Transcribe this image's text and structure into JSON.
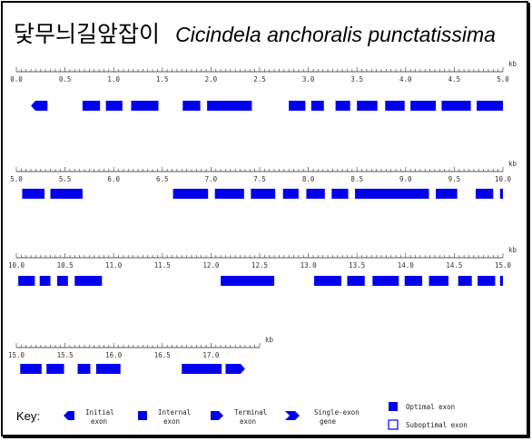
{
  "title": {
    "korean": "닻무늬길앞잡이",
    "scientific": "Cicindela anchoralis punctatissima"
  },
  "axis_unit": "kb",
  "rows": [
    {
      "start": 0,
      "end": 5.0,
      "ticks": [
        "0.0",
        "0.5",
        "1.0",
        "1.5",
        "2.0",
        "2.5",
        "3.0",
        "3.5",
        "4.0",
        "4.5",
        "5.0"
      ],
      "exons": [
        {
          "start": 0.15,
          "end": 0.32,
          "type": "initial"
        },
        {
          "start": 0.68,
          "end": 0.86,
          "type": "internal"
        },
        {
          "start": 0.92,
          "end": 1.09,
          "type": "internal"
        },
        {
          "start": 1.18,
          "end": 1.46,
          "type": "internal"
        },
        {
          "start": 1.71,
          "end": 1.89,
          "type": "internal"
        },
        {
          "start": 1.96,
          "end": 2.42,
          "type": "internal"
        },
        {
          "start": 2.8,
          "end": 2.97,
          "type": "internal"
        },
        {
          "start": 3.03,
          "end": 3.16,
          "type": "internal"
        },
        {
          "start": 3.28,
          "end": 3.43,
          "type": "internal"
        },
        {
          "start": 3.5,
          "end": 3.71,
          "type": "internal"
        },
        {
          "start": 3.79,
          "end": 3.99,
          "type": "internal"
        },
        {
          "start": 4.05,
          "end": 4.31,
          "type": "internal"
        },
        {
          "start": 4.37,
          "end": 4.67,
          "type": "internal"
        },
        {
          "start": 4.73,
          "end": 5.0,
          "type": "internal"
        }
      ]
    },
    {
      "start": 5.0,
      "end": 10.0,
      "ticks": [
        "5.0",
        "5.5",
        "6.0",
        "6.5",
        "7.0",
        "7.5",
        "8.0",
        "8.5",
        "9.0",
        "9.5",
        "10.0"
      ],
      "exons": [
        {
          "start": 5.06,
          "end": 5.29,
          "type": "internal"
        },
        {
          "start": 5.35,
          "end": 5.68,
          "type": "internal"
        },
        {
          "start": 6.61,
          "end": 6.97,
          "type": "internal"
        },
        {
          "start": 7.04,
          "end": 7.34,
          "type": "internal"
        },
        {
          "start": 7.41,
          "end": 7.66,
          "type": "internal"
        },
        {
          "start": 7.74,
          "end": 7.9,
          "type": "internal"
        },
        {
          "start": 7.98,
          "end": 8.17,
          "type": "internal"
        },
        {
          "start": 8.24,
          "end": 8.41,
          "type": "internal"
        },
        {
          "start": 8.48,
          "end": 9.24,
          "type": "internal"
        },
        {
          "start": 9.31,
          "end": 9.53,
          "type": "internal"
        },
        {
          "start": 9.72,
          "end": 9.9,
          "type": "internal"
        },
        {
          "start": 9.97,
          "end": 10.0,
          "type": "internal"
        }
      ]
    },
    {
      "start": 10.0,
      "end": 15.0,
      "ticks": [
        "10.0",
        "10.5",
        "11.0",
        "11.5",
        "12.0",
        "12.5",
        "13.0",
        "13.5",
        "14.0",
        "14.5",
        "15.0"
      ],
      "exons": [
        {
          "start": 10.02,
          "end": 10.19,
          "type": "internal"
        },
        {
          "start": 10.24,
          "end": 10.35,
          "type": "internal"
        },
        {
          "start": 10.42,
          "end": 10.53,
          "type": "internal"
        },
        {
          "start": 10.6,
          "end": 10.88,
          "type": "internal"
        },
        {
          "start": 12.1,
          "end": 12.65,
          "type": "internal"
        },
        {
          "start": 13.06,
          "end": 13.34,
          "type": "internal"
        },
        {
          "start": 13.4,
          "end": 13.58,
          "type": "internal"
        },
        {
          "start": 13.66,
          "end": 13.93,
          "type": "internal"
        },
        {
          "start": 13.99,
          "end": 14.17,
          "type": "internal"
        },
        {
          "start": 14.24,
          "end": 14.44,
          "type": "internal"
        },
        {
          "start": 14.54,
          "end": 14.68,
          "type": "internal"
        },
        {
          "start": 14.74,
          "end": 14.92,
          "type": "internal"
        },
        {
          "start": 14.97,
          "end": 15.0,
          "type": "internal"
        }
      ]
    },
    {
      "start": 15.0,
      "end": 17.5,
      "ticks": [
        "15.0",
        "15.5",
        "16.0",
        "16.5",
        "17.0"
      ],
      "exons": [
        {
          "start": 15.04,
          "end": 15.26,
          "type": "internal"
        },
        {
          "start": 15.31,
          "end": 15.49,
          "type": "internal"
        },
        {
          "start": 15.63,
          "end": 15.76,
          "type": "internal"
        },
        {
          "start": 15.82,
          "end": 16.07,
          "type": "internal"
        },
        {
          "start": 16.7,
          "end": 17.11,
          "type": "internal"
        },
        {
          "start": 17.15,
          "end": 17.35,
          "type": "terminal"
        }
      ]
    }
  ],
  "key": {
    "label": "Key:",
    "items": [
      {
        "line1": "Initial",
        "line2": "exon",
        "shape": "initial"
      },
      {
        "line1": "Internal",
        "line2": "exon",
        "shape": "internal"
      },
      {
        "line1": "Terminal",
        "line2": "exon",
        "shape": "terminal"
      },
      {
        "line1": "Single-exon",
        "line2": "gene",
        "shape": "single"
      }
    ],
    "optimal": "Optimal exon",
    "suboptimal": "Suboptimal exon"
  },
  "colors": {
    "exon": "#0000ee",
    "axis": "#555555",
    "text": "#000000"
  }
}
